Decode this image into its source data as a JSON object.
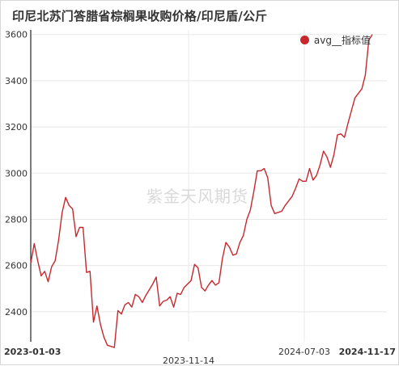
{
  "chart_data": {
    "type": "line",
    "title": "印尼北苏门答腊省棕榈果收购价格/印尼盾/公斤",
    "xlabel": "",
    "ylabel": "",
    "ylim": [
      2270,
      3620
    ],
    "yticks": [
      2400,
      2600,
      2800,
      3000,
      3200,
      3400,
      3600
    ],
    "x_ticks": [
      {
        "label": "2023-01-03",
        "bold": true
      },
      {
        "label": "2023-11-14",
        "bold": false
      },
      {
        "label": "2024-07-03",
        "bold": false
      },
      {
        "label": "2024-11-17",
        "bold": true
      }
    ],
    "grid": true,
    "legend_position": "top-right",
    "series": [
      {
        "name": "avg__指标值",
        "color": "#c8282d",
        "values": [
          2610,
          2695,
          2620,
          2555,
          2575,
          2530,
          2595,
          2620,
          2710,
          2830,
          2895,
          2860,
          2845,
          2725,
          2765,
          2765,
          2570,
          2575,
          2355,
          2425,
          2345,
          2290,
          2255,
          2250,
          2245,
          2405,
          2390,
          2430,
          2440,
          2420,
          2475,
          2465,
          2440,
          2470,
          2495,
          2520,
          2550,
          2425,
          2445,
          2450,
          2465,
          2420,
          2480,
          2475,
          2505,
          2520,
          2535,
          2605,
          2590,
          2505,
          2490,
          2515,
          2535,
          2515,
          2525,
          2630,
          2700,
          2680,
          2645,
          2650,
          2700,
          2730,
          2800,
          2840,
          2920,
          3010,
          3010,
          3020,
          2980,
          2860,
          2825,
          2830,
          2835,
          2860,
          2880,
          2900,
          2935,
          2975,
          2965,
          2965,
          3020,
          2970,
          2990,
          3035,
          3095,
          3070,
          3025,
          3080,
          3165,
          3170,
          3155,
          3215,
          3270,
          3325,
          3345,
          3365,
          3425,
          3575,
          3600
        ]
      }
    ],
    "watermark": "紫金天风期货"
  }
}
